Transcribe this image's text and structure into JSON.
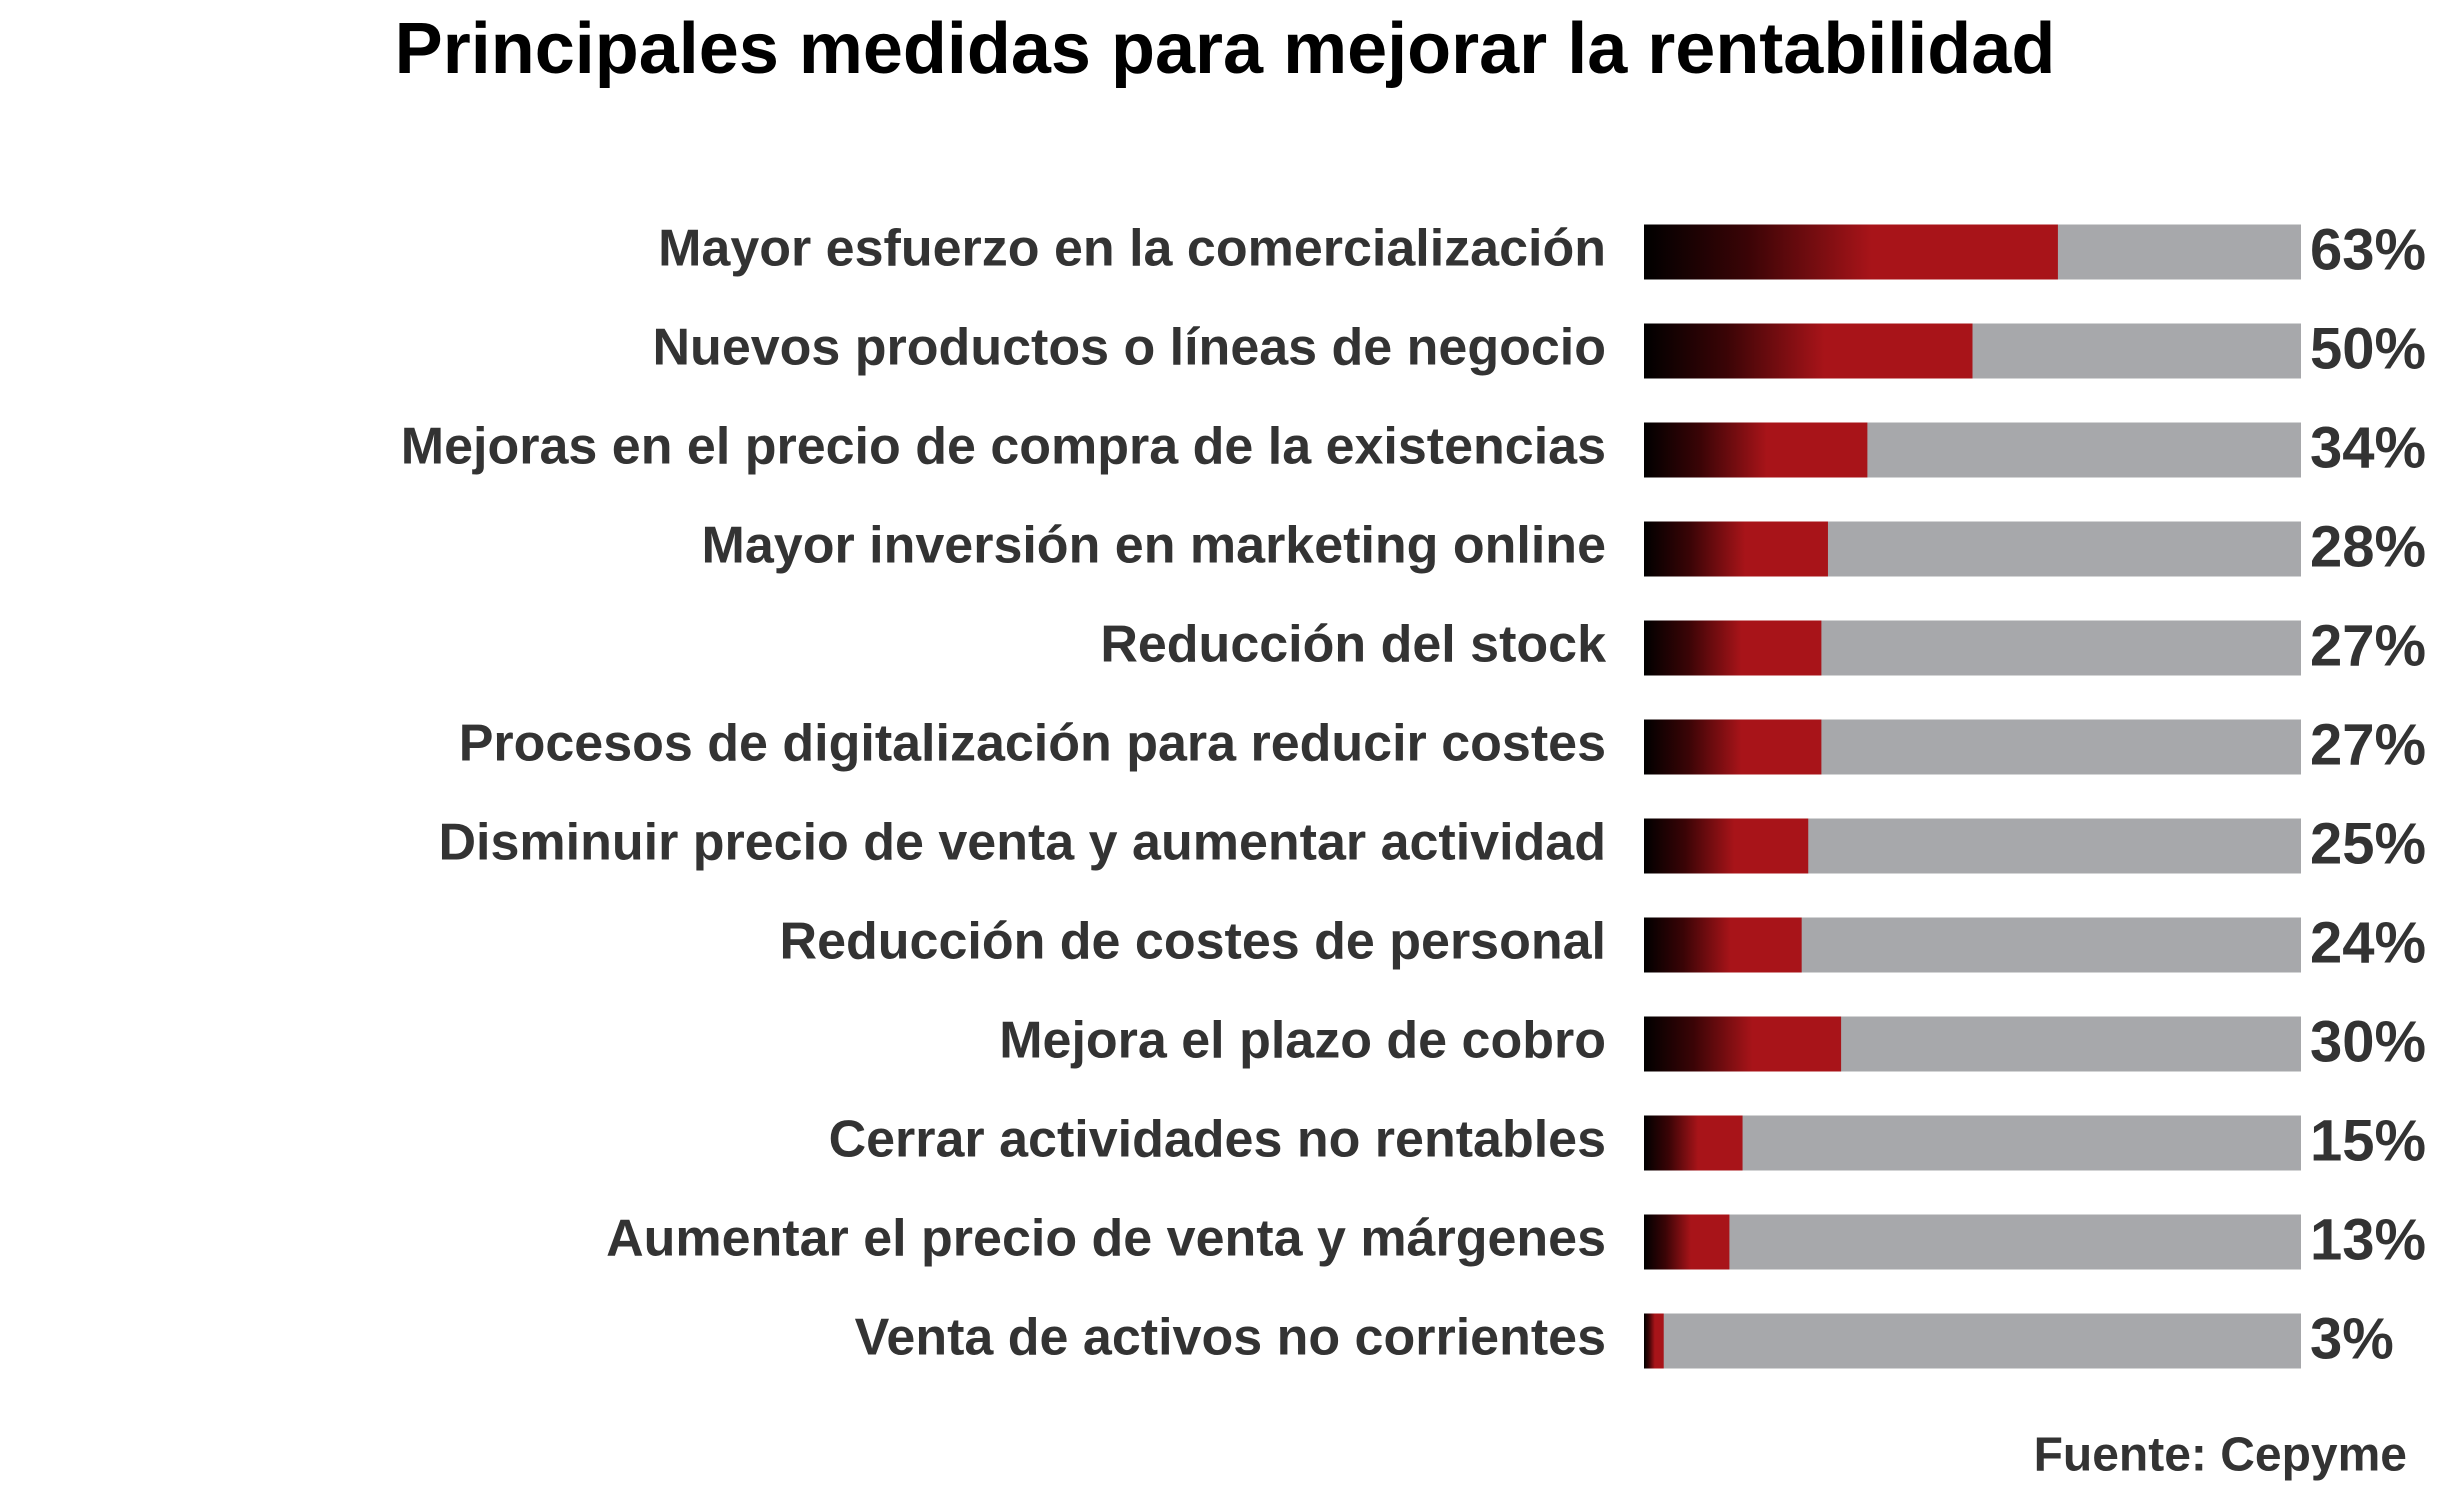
{
  "chart_data": {
    "type": "bar",
    "orientation": "horizontal",
    "title": "Principales medidas para mejorar la rentabilidad",
    "source": "Fuente: Cepyme",
    "categories": [
      "Mayor esfuerzo en la comercialización",
      "Nuevos productos o líneas de negocio",
      "Mejoras en el precio de compra de la existencias",
      "Mayor inversión en marketing online",
      "Reducción del stock",
      "Procesos de digitalización para reducir costes",
      "Disminuir precio de venta y aumentar actividad",
      "Reducción de costes de personal",
      "Mejora el plazo de cobro",
      "Cerrar actividades no rentables",
      "Aumentar el precio de venta y márgenes",
      "Venta de activos no corrientes"
    ],
    "values": [
      63,
      50,
      34,
      28,
      27,
      27,
      25,
      24,
      30,
      15,
      13,
      3
    ],
    "value_labels": [
      "63%",
      "50%",
      "34%",
      "28%",
      "27%",
      "27%",
      "25%",
      "24%",
      "30%",
      "15%",
      "13%",
      "3%"
    ],
    "color": "#a81419",
    "xlim": [
      0,
      100
    ]
  }
}
